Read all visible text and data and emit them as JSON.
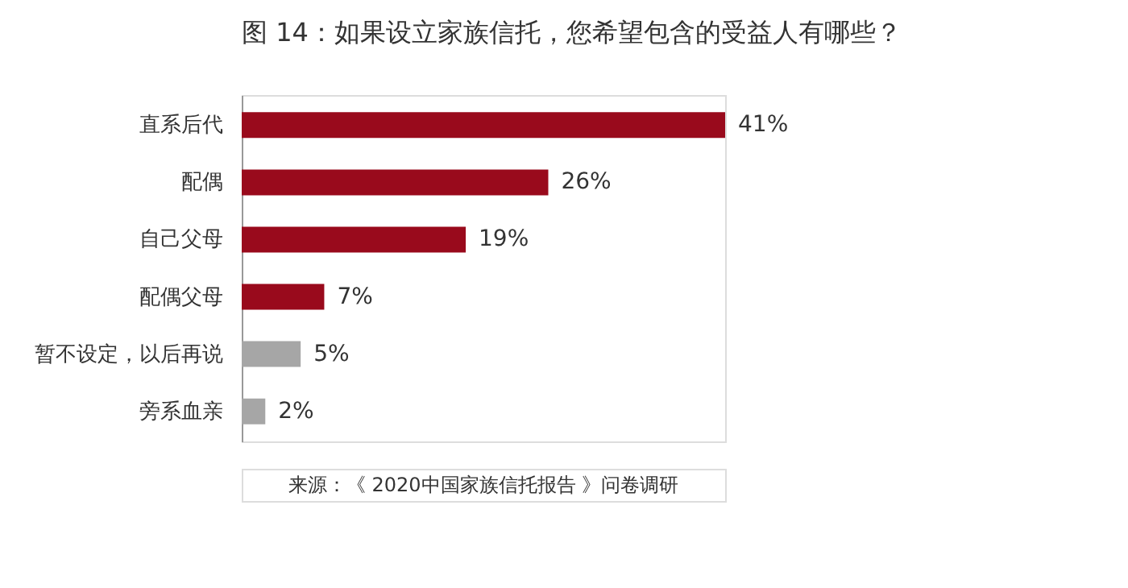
{
  "chart_data": {
    "type": "bar",
    "orientation": "horizontal",
    "title": "图 14：如果设立家族信托，您希望包含的受益人有哪些？",
    "categories": [
      "直系后代",
      "配偶",
      "自己父母",
      "配偶父母",
      "暂不设定，以后再说",
      "旁系血亲"
    ],
    "values": [
      41,
      26,
      19,
      7,
      5,
      2
    ],
    "value_labels": [
      "41%",
      "26%",
      "19%",
      "7%",
      "5%",
      "2%"
    ],
    "colors": [
      "#990a1c",
      "#990a1c",
      "#990a1c",
      "#990a1c",
      "#a6a6a6",
      "#a6a6a6"
    ],
    "annotations": [
      "来源：《 2020中国家族信托报告 》问卷调研"
    ]
  }
}
